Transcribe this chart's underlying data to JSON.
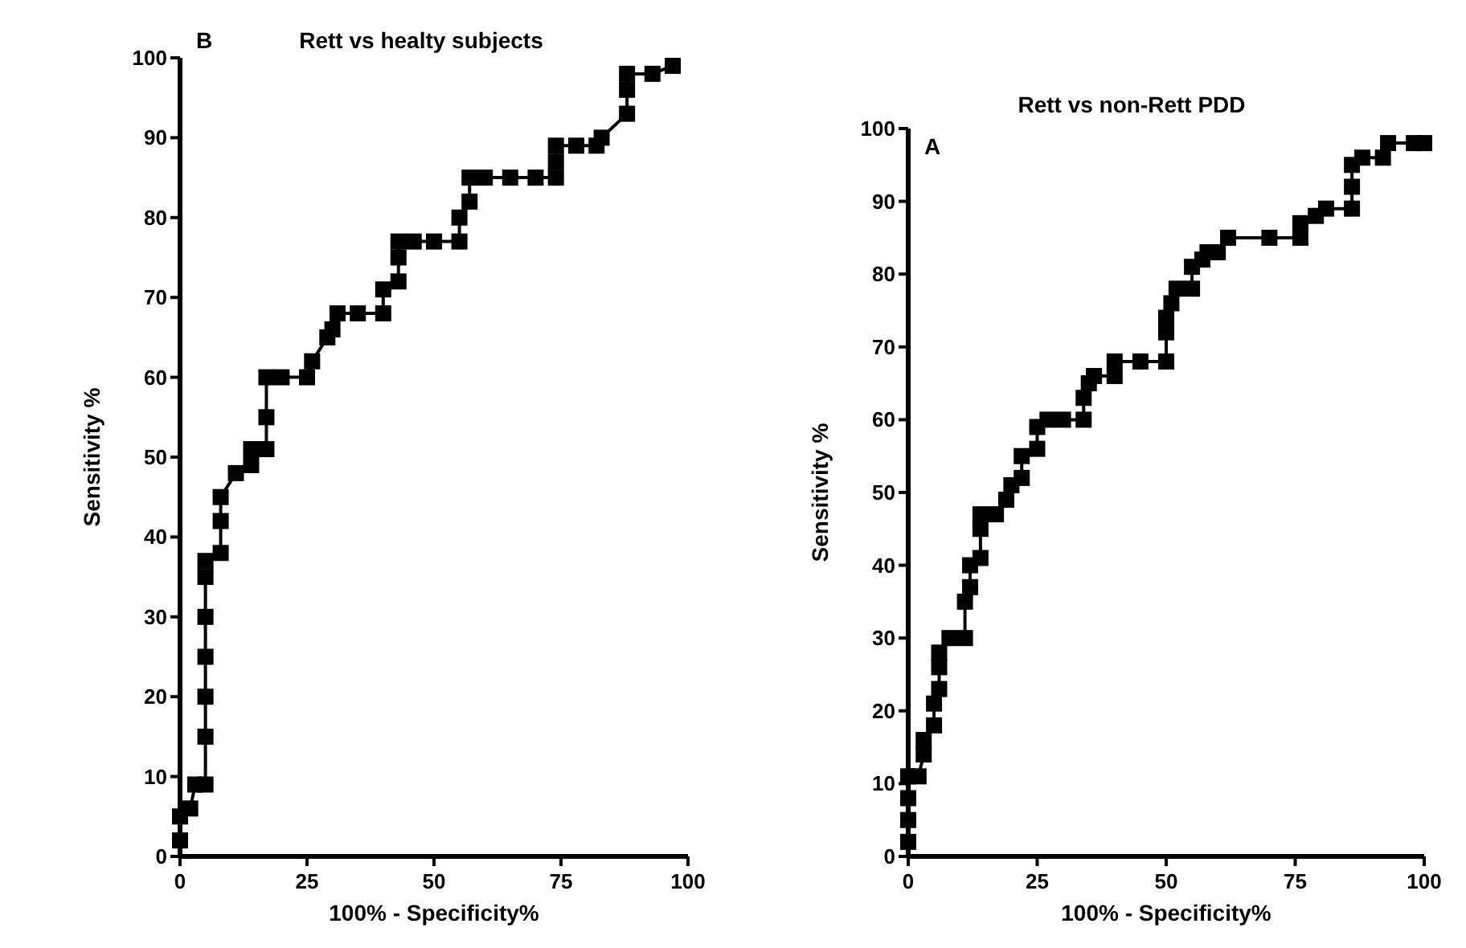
{
  "chart_data": [
    {
      "type": "line",
      "title": "Rett vs healty subjects",
      "xlabel": "100% - Specificity%",
      "ylabel": "Sensitivity %",
      "annotations": [
        "B"
      ],
      "marker": "square",
      "line_style": "solid",
      "grid": false,
      "xlim": [
        0,
        100
      ],
      "ylim": [
        0,
        100
      ],
      "xticks": [
        0,
        25,
        50,
        75,
        100
      ],
      "yticks": [
        0,
        10,
        20,
        30,
        40,
        50,
        60,
        70,
        80,
        90,
        100
      ],
      "series": [
        {
          "color": "#000000",
          "x": [
            0,
            0,
            2,
            3,
            5,
            5,
            5,
            5,
            5,
            5,
            5,
            8,
            8,
            8,
            11,
            14,
            14,
            17,
            17,
            17,
            20,
            25,
            26,
            29,
            30,
            31,
            35,
            40,
            40,
            43,
            43,
            43,
            46,
            50,
            55,
            55,
            57,
            57,
            60,
            65,
            70,
            74,
            74,
            74,
            78,
            82,
            83,
            88,
            88,
            88,
            93,
            97
          ],
          "values": [
            2,
            5,
            6,
            9,
            9,
            15,
            20,
            25,
            30,
            35,
            37,
            38,
            42,
            45,
            48,
            49,
            51,
            51,
            55,
            60,
            60,
            60,
            62,
            65,
            66,
            68,
            68,
            68,
            71,
            72,
            75,
            77,
            77,
            77,
            77,
            80,
            82,
            85,
            85,
            85,
            85,
            85,
            87,
            89,
            89,
            89,
            90,
            93,
            96,
            98,
            98,
            99
          ]
        }
      ]
    },
    {
      "type": "line",
      "title": "Rett vs non-Rett PDD",
      "xlabel": "100% - Specificity%",
      "ylabel": "Sensitivity %",
      "annotations": [
        "A"
      ],
      "marker": "square",
      "line_style": "solid",
      "grid": false,
      "xlim": [
        0,
        100
      ],
      "ylim": [
        0,
        100
      ],
      "xticks": [
        0,
        25,
        50,
        75,
        100
      ],
      "yticks": [
        0,
        10,
        20,
        30,
        40,
        50,
        60,
        70,
        80,
        90,
        100
      ],
      "series": [
        {
          "color": "#000000",
          "x": [
            0,
            0,
            0,
            0,
            2,
            3,
            3,
            5,
            5,
            6,
            6,
            6,
            8,
            11,
            11,
            12,
            12,
            14,
            14,
            14,
            17,
            19,
            20,
            22,
            22,
            25,
            25,
            27,
            30,
            34,
            34,
            35,
            36,
            40,
            40,
            45,
            50,
            50,
            50,
            51,
            52,
            55,
            55,
            57,
            58,
            60,
            62,
            70,
            76,
            76,
            79,
            81,
            86,
            86,
            86,
            88,
            92,
            93,
            98,
            100
          ],
          "values": [
            2,
            5,
            8,
            11,
            11,
            14,
            16,
            18,
            21,
            23,
            26,
            28,
            30,
            30,
            35,
            37,
            40,
            41,
            45,
            47,
            47,
            49,
            51,
            52,
            55,
            56,
            59,
            60,
            60,
            60,
            63,
            65,
            66,
            66,
            68,
            68,
            68,
            72,
            74,
            76,
            78,
            78,
            81,
            82,
            83,
            83,
            85,
            85,
            85,
            87,
            88,
            89,
            89,
            92,
            95,
            96,
            96,
            98,
            98,
            98
          ]
        }
      ]
    }
  ]
}
